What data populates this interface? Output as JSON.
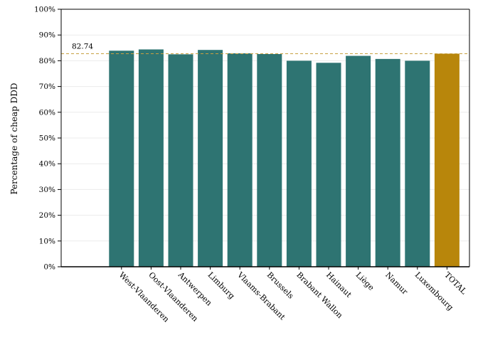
{
  "chart_data": {
    "type": "bar",
    "title": "",
    "xlabel": "",
    "ylabel": "Percentage of cheap DDD",
    "ylim": [
      0,
      100
    ],
    "yticks": [
      "0%",
      "10%",
      "20%",
      "30%",
      "40%",
      "50%",
      "60%",
      "70%",
      "80%",
      "90%",
      "100%"
    ],
    "grid": true,
    "categories": [
      "West-Vlaanderen",
      "Oost-Vlaanderen",
      "Antwerpen",
      "Limburg",
      "Vlaams-Brabant",
      "Brussels",
      "Brabant Wallon",
      "Hainaut",
      "Liège",
      "Namur",
      "Luxembourg",
      "TOTAL"
    ],
    "values": [
      83.9,
      84.4,
      82.5,
      84.2,
      82.9,
      82.6,
      80.0,
      79.2,
      81.9,
      80.7,
      80.0,
      82.74
    ],
    "reference_line": {
      "value": 82.74,
      "label": "82.74",
      "color": "#c8a040"
    },
    "colors": {
      "bar": "#2e7472",
      "highlight": "#b8860b"
    },
    "highlight_category": "TOTAL"
  }
}
